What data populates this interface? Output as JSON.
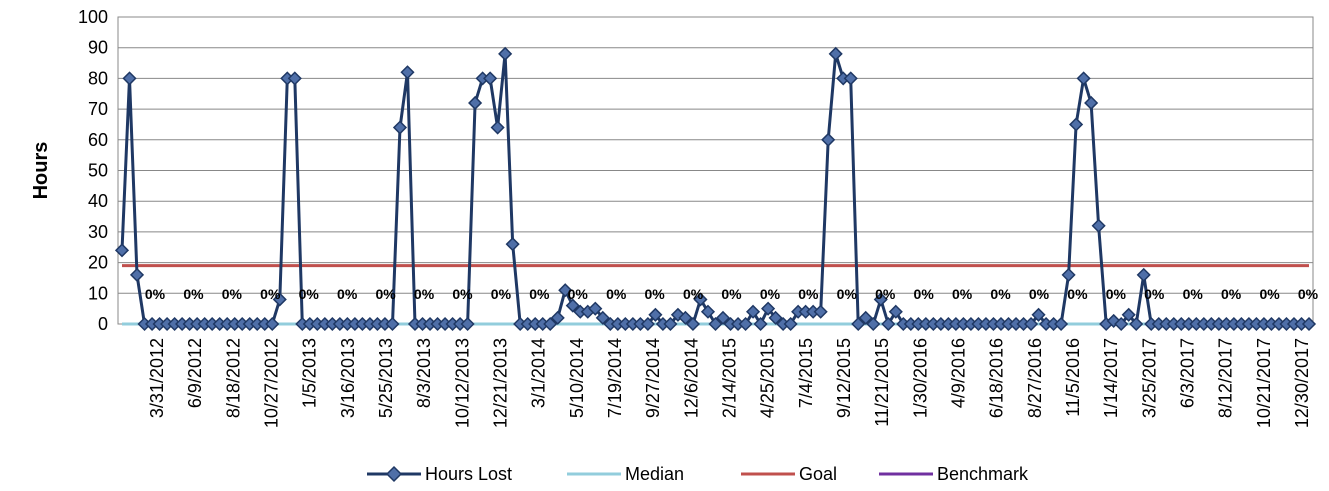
{
  "chart_data": {
    "type": "line",
    "ylabel": "Hours",
    "xlabel": "",
    "ylim": [
      0,
      100
    ],
    "yticks": [
      "0",
      "10",
      "20",
      "30",
      "40",
      "50",
      "60",
      "70",
      "80",
      "90",
      "100"
    ],
    "grid": true,
    "legend_position": "bottom",
    "x_tick_labels": [
      "3/31/2012",
      "6/9/2012",
      "8/18/2012",
      "10/27/2012",
      "1/5/2013",
      "3/16/2013",
      "5/25/2013",
      "8/3/2013",
      "10/12/2013",
      "12/21/2013",
      "3/1/2014",
      "5/10/2014",
      "7/19/2014",
      "9/27/2014",
      "12/6/2014",
      "2/14/2015",
      "4/25/2015",
      "7/4/2015",
      "9/12/2015",
      "11/21/2015",
      "1/30/2016",
      "4/9/2016",
      "6/18/2016",
      "8/27/2016",
      "11/5/2016",
      "1/14/2017",
      "3/25/2017",
      "6/3/2017",
      "8/12/2017",
      "10/21/2017",
      "12/30/2017"
    ],
    "point_labels": [
      "0%",
      "0%",
      "0%",
      "0%",
      "0%",
      "0%",
      "0%",
      "0%",
      "0%",
      "0%",
      "0%",
      "0%",
      "0%",
      "0%",
      "0%",
      "0%",
      "0%",
      "0%",
      "0%",
      "0%",
      "0%",
      "0%",
      "0%",
      "0%",
      "0%",
      "0%",
      "0%",
      "0%",
      "0%",
      "0%",
      "0%"
    ],
    "series": [
      {
        "name": "Hours Lost",
        "color": "#1f3864",
        "marker": "diamond",
        "values": [
          24,
          80,
          16,
          0,
          0,
          0,
          0,
          0,
          0,
          0,
          0,
          0,
          0,
          0,
          0,
          0,
          0,
          0,
          0,
          0,
          0,
          8,
          80,
          80,
          0,
          0,
          0,
          0,
          0,
          0,
          0,
          0,
          0,
          0,
          0,
          0,
          0,
          64,
          82,
          0,
          0,
          0,
          0,
          0,
          0,
          0,
          0,
          72,
          80,
          80,
          64,
          88,
          26,
          0,
          0,
          0,
          0,
          0,
          2,
          11,
          6,
          4,
          4,
          5,
          2,
          0,
          0,
          0,
          0,
          0,
          0,
          3,
          0,
          0,
          3,
          2,
          0,
          8,
          4,
          0,
          2,
          0,
          0,
          0,
          4,
          0,
          5,
          2,
          0,
          0,
          4,
          4,
          4,
          4,
          60,
          88,
          80,
          80,
          0,
          2,
          0,
          8,
          0,
          4,
          0,
          0,
          0,
          0,
          0,
          0,
          0,
          0,
          0,
          0,
          0,
          0,
          0,
          0,
          0,
          0,
          0,
          0,
          3,
          0,
          0,
          0,
          16,
          65,
          80,
          72,
          32,
          0,
          1,
          0,
          3,
          0,
          16,
          0,
          0,
          0,
          0,
          0,
          0,
          0,
          0,
          0,
          0,
          0,
          0,
          0,
          0,
          0,
          0,
          0,
          0,
          0,
          0,
          0,
          0
        ]
      },
      {
        "name": "Median",
        "color": "#92cddc",
        "constant": 0
      },
      {
        "name": "Goal",
        "color": "#c0504d",
        "constant": 19
      },
      {
        "name": "Benchmark",
        "color": "#7030a0",
        "constant": null
      }
    ]
  }
}
